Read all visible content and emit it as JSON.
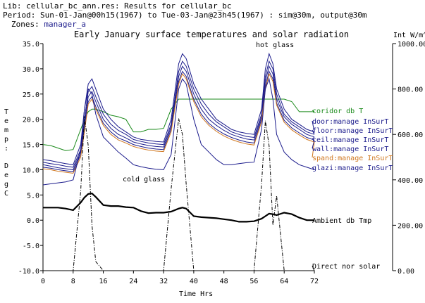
{
  "header": {
    "lib": "Lib: cellular_bc_ann.res: Results for cellular_bc",
    "period": "Period: Sun-01-Jan@00h15(1967) to Tue-03-Jan@23h45(1967) : sim@30m, output@30m",
    "zones_label": "Zones:",
    "zone": "manager_a"
  },
  "chart_data": {
    "type": "line",
    "title": "Early January surface temperatures and solar radiation",
    "xlabel": "Time Hrs",
    "ylabel": "Temp: Deg C",
    "ylabel_chars": [
      "T",
      "e",
      "m",
      "p",
      ":",
      "D",
      "e",
      "g",
      "C"
    ],
    "y2label": "Int W/m^2",
    "xlim": [
      0,
      72
    ],
    "ylim": [
      -10,
      35
    ],
    "y2lim": [
      0,
      1000
    ],
    "x_ticks": [
      "0",
      "8",
      "16",
      "24",
      "32",
      "40",
      "48",
      "56",
      "64",
      "72"
    ],
    "y_ticks": [
      "-10.0",
      "-5.0",
      "0.0",
      "5.0",
      "10.0",
      "15.0",
      "20.0",
      "25.0",
      "30.0",
      "35.0"
    ],
    "y2_ticks": [
      "0.00",
      "200.00",
      "400.00",
      "600.00",
      "800.00",
      "1000.00"
    ],
    "annotations": {
      "hot": "hot glass",
      "cold": "cold glass"
    },
    "x": [
      0,
      2,
      4,
      6,
      8,
      10,
      11,
      12,
      13,
      14,
      16,
      18,
      20,
      22,
      24,
      26,
      28,
      30,
      32,
      34,
      36,
      37,
      38,
      40,
      42,
      44,
      46,
      48,
      50,
      52,
      54,
      56,
      58,
      59,
      60,
      61,
      62,
      64,
      66,
      68,
      70,
      72
    ],
    "series": [
      {
        "name": "coridor db T",
        "color": "#1a8a1a",
        "axis": "left",
        "values": [
          15,
          14.8,
          14.3,
          13.8,
          14,
          18,
          20,
          21.5,
          22,
          22,
          21.5,
          20.8,
          20.5,
          20,
          17.5,
          17.5,
          18,
          18,
          18.2,
          22,
          24,
          24,
          24,
          24,
          24,
          24,
          24,
          24,
          24,
          24,
          24,
          24,
          24,
          24,
          24,
          24,
          24,
          24,
          23.5,
          21.5,
          21.5,
          21.5
        ]
      },
      {
        "name": "door:manage InSurT",
        "color": "#1c1c8c",
        "axis": "left",
        "values": [
          12,
          11.8,
          11.5,
          11.2,
          11,
          15,
          22,
          27,
          28,
          26,
          22,
          20,
          18.5,
          17.5,
          16.5,
          16,
          15.8,
          15.6,
          15.5,
          20,
          31,
          33,
          32,
          27,
          24,
          22,
          20,
          19,
          18,
          17.5,
          17.2,
          17,
          22,
          30,
          33,
          31,
          26,
          22,
          20,
          19,
          18,
          17.5
        ]
      },
      {
        "name": "floor:manage InSurT",
        "color": "#1c1c8c",
        "axis": "left",
        "values": [
          11.5,
          11.2,
          11,
          10.7,
          10.5,
          14,
          20,
          25.5,
          26.5,
          24.5,
          21,
          19,
          17.8,
          17,
          16,
          15.6,
          15.3,
          15.1,
          15,
          19,
          29.5,
          31.5,
          30.5,
          26,
          23,
          21,
          19.5,
          18.5,
          17.5,
          17,
          16.6,
          16.4,
          21,
          28.5,
          31.5,
          30,
          25,
          21,
          19.5,
          18.5,
          17.5,
          17
        ]
      },
      {
        "name": "ceil:manage InSurT",
        "color": "#1c1c8c",
        "axis": "left",
        "values": [
          11,
          10.7,
          10.4,
          10.2,
          10,
          13.5,
          19,
          24.5,
          25.5,
          23.5,
          20,
          18.2,
          17,
          16.3,
          15.5,
          15.1,
          14.8,
          14.6,
          14.5,
          18.5,
          28.5,
          30.5,
          29.5,
          25,
          22,
          20,
          18.8,
          17.8,
          17,
          16.5,
          16.1,
          15.9,
          20.5,
          27.5,
          30.5,
          29,
          24,
          20.5,
          19,
          18,
          17,
          16.5
        ]
      },
      {
        "name": "wall:manage InSurT",
        "color": "#1c1c8c",
        "axis": "left",
        "values": [
          10.5,
          10.3,
          10,
          9.8,
          9.6,
          13,
          18,
          23.5,
          24.5,
          22.5,
          19.2,
          17.5,
          16.3,
          15.7,
          15,
          14.6,
          14.3,
          14.1,
          14,
          18,
          27.5,
          29.5,
          28.5,
          24,
          21,
          19.2,
          18,
          17.1,
          16.4,
          15.9,
          15.5,
          15.3,
          20,
          26.5,
          29.5,
          28,
          23.2,
          19.8,
          18.3,
          17.3,
          16.4,
          15.9
        ]
      },
      {
        "name": "spand:manage InSurT",
        "color": "#d07820",
        "axis": "left",
        "values": [
          10.2,
          10,
          9.7,
          9.5,
          9.3,
          12.5,
          17.5,
          23,
          24,
          22,
          18.8,
          17,
          15.9,
          15.3,
          14.6,
          14.2,
          13.9,
          13.7,
          13.6,
          17.5,
          27,
          29,
          28,
          23.5,
          20.5,
          18.8,
          17.6,
          16.7,
          16,
          15.5,
          15.1,
          14.9,
          19.5,
          26,
          29,
          27.5,
          22.8,
          19.4,
          17.9,
          16.9,
          16,
          15.5
        ]
      },
      {
        "name": "glazi:manage InSurT",
        "color": "#1c1c8c",
        "axis": "left",
        "values": [
          7,
          7.2,
          7.4,
          7.6,
          8,
          14,
          22,
          26,
          25,
          21,
          16.5,
          15,
          13.5,
          12.3,
          11,
          10.6,
          10.3,
          10.1,
          10,
          13,
          26,
          28,
          27,
          20,
          15,
          13.5,
          12,
          11,
          11,
          11.2,
          11.4,
          11.5,
          18,
          26,
          28,
          24,
          17,
          13.5,
          12,
          11,
          10.5,
          10
        ]
      },
      {
        "name": "Ambient db Tmp",
        "color": "#000000",
        "axis": "left",
        "values": [
          2.5,
          2.5,
          2.5,
          2.3,
          2,
          3.5,
          4.5,
          5.2,
          5.3,
          4.6,
          3,
          2.8,
          2.8,
          2.6,
          2.5,
          1.8,
          1.4,
          1.5,
          1.5,
          1.7,
          2.3,
          2.5,
          2.3,
          0.8,
          0.6,
          0.5,
          0.4,
          0.2,
          0,
          -0.3,
          -0.3,
          -0.2,
          0.3,
          0.8,
          1.3,
          1.2,
          1,
          1.5,
          1.2,
          0.5,
          0,
          0
        ]
      },
      {
        "name": "Direct nor solar",
        "color": "#000000",
        "axis": "right",
        "dash": true,
        "values": [
          0,
          0,
          0,
          0,
          0,
          350,
          680,
          550,
          200,
          40,
          0,
          0,
          0,
          0,
          0,
          0,
          0,
          0,
          0,
          360,
          670,
          600,
          380,
          0,
          0,
          0,
          0,
          0,
          0,
          0,
          0,
          0,
          380,
          660,
          550,
          200,
          330,
          0,
          0,
          0,
          0,
          0
        ]
      }
    ]
  }
}
